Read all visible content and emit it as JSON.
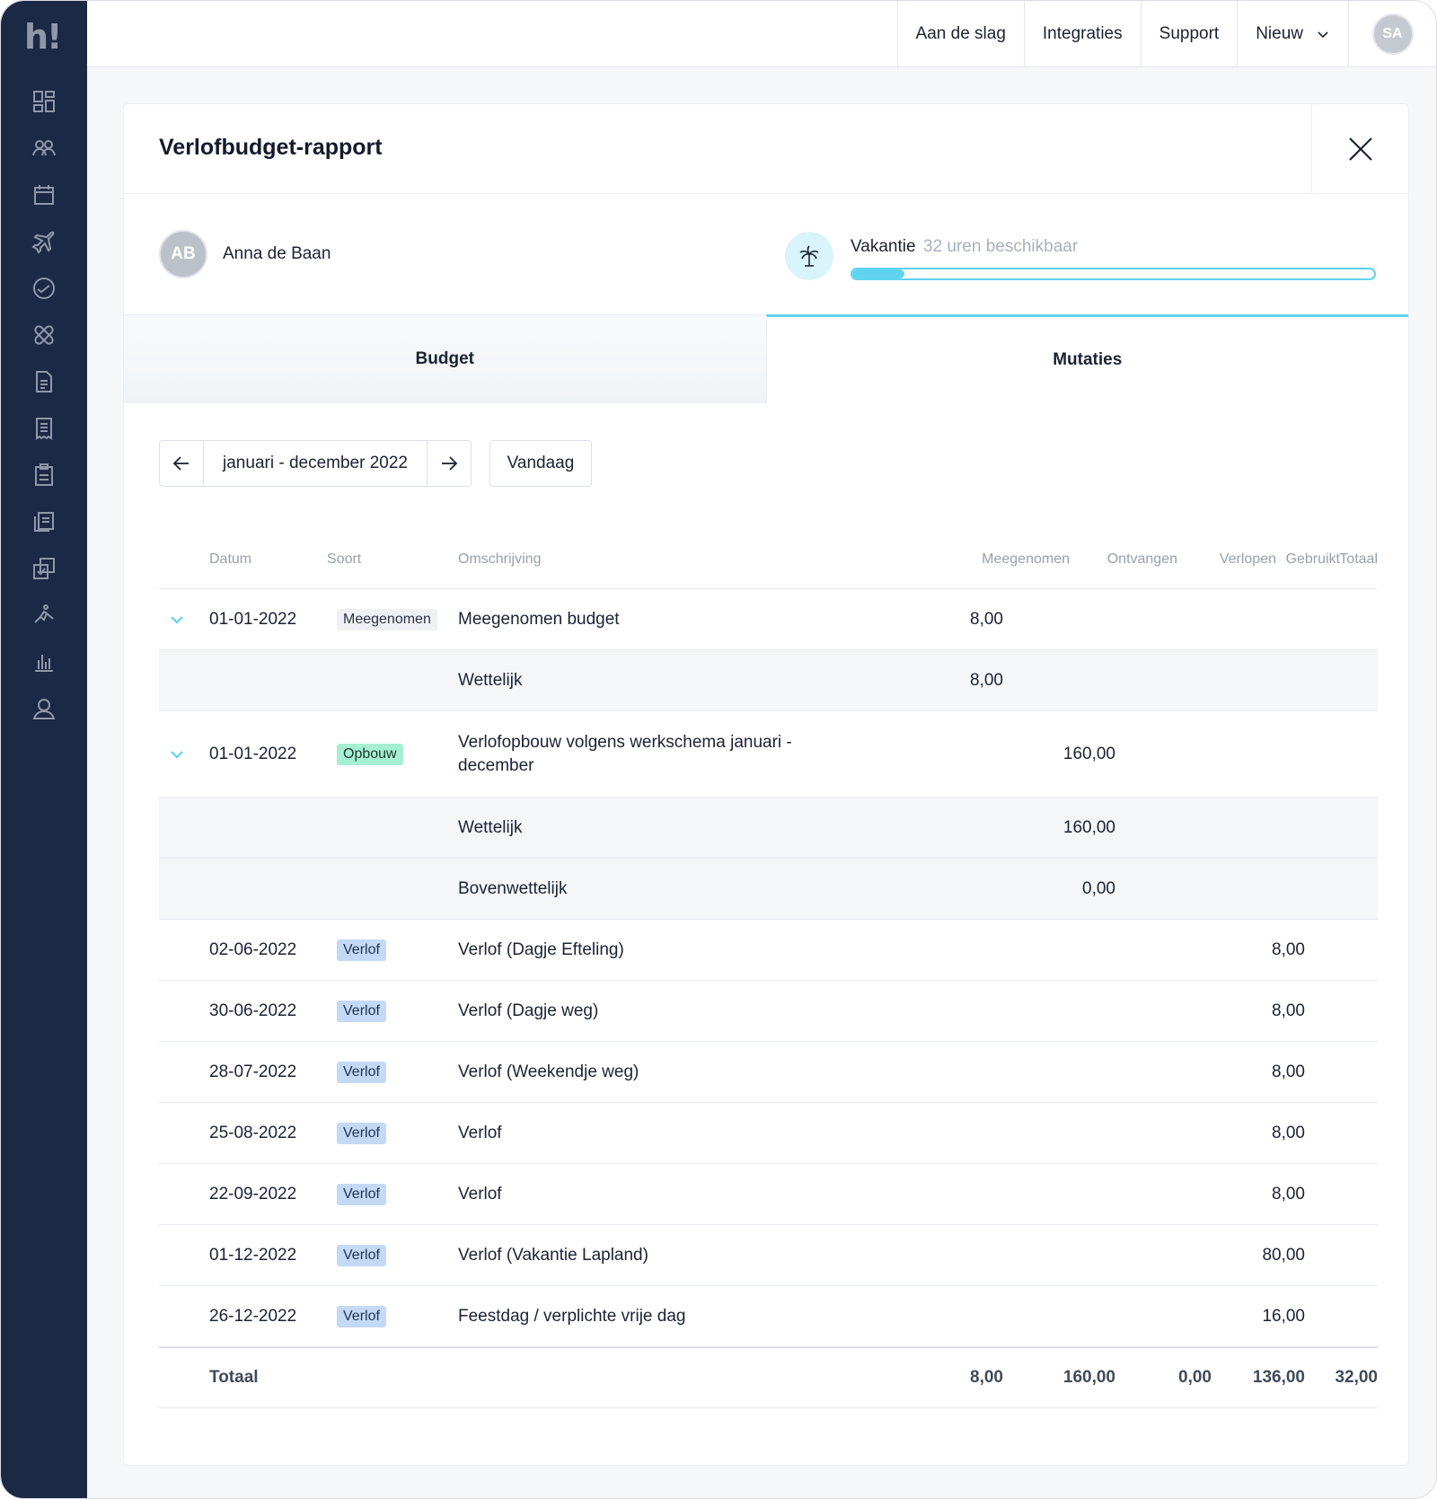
{
  "topbar": {
    "links": [
      "Aan de slag",
      "Integraties",
      "Support",
      "Nieuw"
    ],
    "user_initials": "SA"
  },
  "sidebar": {
    "logo": "h!",
    "icons": [
      "dashboard-icon",
      "people-icon",
      "calendar-icon",
      "plane-icon",
      "clock-icon",
      "bandage-icon",
      "document-icon",
      "receipt-icon",
      "clipboard-icon",
      "documents-icon",
      "checklist-icon",
      "person-running-icon",
      "bar-chart-icon",
      "user-icon"
    ]
  },
  "report": {
    "title": "Verlofbudget-rapport",
    "person": {
      "initials": "AB",
      "name": "Anna de Baan"
    },
    "leave": {
      "type": "Vakantie",
      "available": "32 uren beschikbaar",
      "progress_fraction": 0.1
    },
    "tabs": [
      "Budget",
      "Mutaties"
    ],
    "active_tab": "Mutaties",
    "period": "januari - december 2022",
    "today_label": "Vandaag"
  },
  "table": {
    "headers": [
      "Datum",
      "Soort",
      "Omschrijving",
      "Meegenomen",
      "Ontvangen",
      "Verlopen",
      "Gebruikt",
      "Totaal"
    ],
    "rows": [
      {
        "kind": "main",
        "expand": true,
        "date": "01-01-2022",
        "badge": "Meegenomen",
        "badge_color": "gray",
        "desc": "Meegenomen budget",
        "meegenomen": "8,00",
        "ontvangen": "",
        "verlopen": "",
        "gebruikt": "",
        "totaal": ""
      },
      {
        "kind": "sub",
        "date": "",
        "badge": "",
        "desc": "Wettelijk",
        "meegenomen": "8,00",
        "ontvangen": "",
        "verlopen": "",
        "gebruikt": "",
        "totaal": ""
      },
      {
        "kind": "main",
        "expand": true,
        "tall": true,
        "date": "01-01-2022",
        "badge": "Opbouw",
        "badge_color": "green",
        "desc": "Verlofopbouw volgens werkschema januari - december",
        "meegenomen": "",
        "ontvangen": "160,00",
        "verlopen": "",
        "gebruikt": "",
        "totaal": ""
      },
      {
        "kind": "sub",
        "date": "",
        "badge": "",
        "desc": "Wettelijk",
        "meegenomen": "",
        "ontvangen": "160,00",
        "verlopen": "",
        "gebruikt": "",
        "totaal": ""
      },
      {
        "kind": "sub",
        "date": "",
        "badge": "",
        "desc": "Bovenwettelijk",
        "meegenomen": "",
        "ontvangen": "0,00",
        "verlopen": "",
        "gebruikt": "",
        "totaal": ""
      },
      {
        "kind": "main",
        "date": "02-06-2022",
        "badge": "Verlof",
        "badge_color": "blue",
        "desc": "Verlof (Dagje Efteling)",
        "meegenomen": "",
        "ontvangen": "",
        "verlopen": "",
        "gebruikt": "8,00",
        "totaal": ""
      },
      {
        "kind": "main",
        "date": "30-06-2022",
        "badge": "Verlof",
        "badge_color": "blue",
        "desc": "Verlof (Dagje weg)",
        "meegenomen": "",
        "ontvangen": "",
        "verlopen": "",
        "gebruikt": "8,00",
        "totaal": ""
      },
      {
        "kind": "main",
        "date": "28-07-2022",
        "badge": "Verlof",
        "badge_color": "blue",
        "desc": "Verlof (Weekendje weg)",
        "meegenomen": "",
        "ontvangen": "",
        "verlopen": "",
        "gebruikt": "8,00",
        "totaal": ""
      },
      {
        "kind": "main",
        "date": "25-08-2022",
        "badge": "Verlof",
        "badge_color": "blue",
        "desc": "Verlof",
        "meegenomen": "",
        "ontvangen": "",
        "verlopen": "",
        "gebruikt": "8,00",
        "totaal": ""
      },
      {
        "kind": "main",
        "date": "22-09-2022",
        "badge": "Verlof",
        "badge_color": "blue",
        "desc": "Verlof",
        "meegenomen": "",
        "ontvangen": "",
        "verlopen": "",
        "gebruikt": "8,00",
        "totaal": ""
      },
      {
        "kind": "main",
        "date": "01-12-2022",
        "badge": "Verlof",
        "badge_color": "blue",
        "desc": "Verlof (Vakantie Lapland)",
        "meegenomen": "",
        "ontvangen": "",
        "verlopen": "",
        "gebruikt": "80,00",
        "totaal": ""
      },
      {
        "kind": "main",
        "date": "26-12-2022",
        "badge": "Verlof",
        "badge_color": "blue",
        "desc": "Feestdag / verplichte vrije dag",
        "meegenomen": "",
        "ontvangen": "",
        "verlopen": "",
        "gebruikt": "16,00",
        "totaal": ""
      }
    ],
    "total": {
      "label": "Totaal",
      "meegenomen": "8,00",
      "ontvangen": "160,00",
      "verlopen": "0,00",
      "gebruikt": "136,00",
      "totaal": "32,00"
    }
  },
  "colors": {
    "sidebar": "#1c2945",
    "accent": "#5fd3ef"
  }
}
